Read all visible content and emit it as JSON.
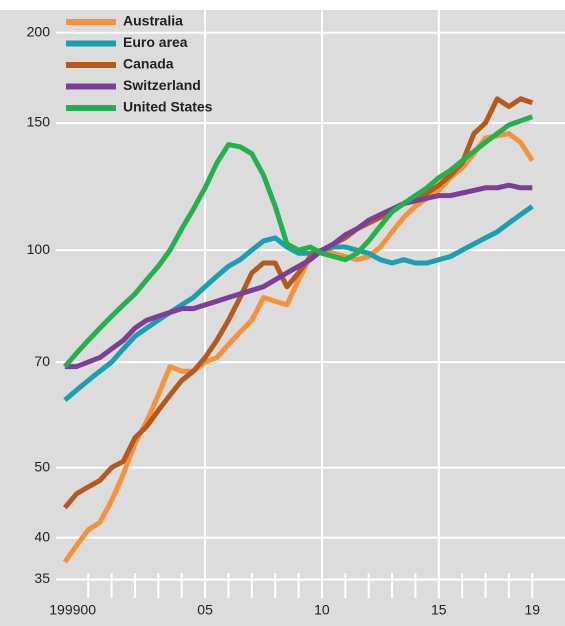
{
  "chart_data": {
    "type": "line",
    "x": [
      1999,
      1999.5,
      2000,
      2000.5,
      2001,
      2001.5,
      2002,
      2002.5,
      2003,
      2003.5,
      2004,
      2004.5,
      2005,
      2005.5,
      2006,
      2006.5,
      2007,
      2007.5,
      2008,
      2008.5,
      2009,
      2009.5,
      2010,
      2010.5,
      2011,
      2011.5,
      2012,
      2012.5,
      2013,
      2013.5,
      2014,
      2014.5,
      2015,
      2015.5,
      2016,
      2016.5,
      2017,
      2017.5,
      2018,
      2018.5,
      2019
    ],
    "series": [
      {
        "name": "Australia",
        "color": "#f7923a",
        "values": [
          37,
          39,
          41,
          42,
          45,
          49,
          54,
          58,
          63,
          69,
          68,
          68,
          70,
          71,
          74,
          77,
          80,
          86,
          85,
          84,
          91,
          98,
          100,
          99,
          98,
          97,
          98,
          101,
          106,
          111,
          115,
          118,
          121,
          126,
          130,
          136,
          143,
          144,
          145,
          141,
          133
        ]
      },
      {
        "name": "Euro area",
        "color": "#1a9fb2",
        "values": [
          62,
          64,
          66,
          68,
          70,
          73,
          76,
          78,
          80,
          82,
          84,
          86,
          89,
          92,
          95,
          97,
          100,
          103,
          104,
          101,
          99,
          99,
          100,
          101,
          101,
          100,
          99,
          97,
          96,
          97,
          96,
          96,
          97,
          98,
          100,
          102,
          104,
          106,
          109,
          112,
          115
        ]
      },
      {
        "name": "Canada",
        "color": "#b5591d",
        "values": [
          44,
          46,
          47,
          48,
          50,
          51,
          55,
          57,
          60,
          63,
          66,
          68,
          71,
          75,
          80,
          86,
          93,
          96,
          96,
          89,
          93,
          98,
          100,
          102,
          104,
          107,
          109,
          111,
          114,
          116,
          118,
          120,
          123,
          127,
          132,
          145,
          150,
          162,
          158,
          162,
          160
        ]
      },
      {
        "name": "Switzerland",
        "color": "#7b3f98",
        "values": [
          69,
          69,
          70,
          71,
          73,
          75,
          78,
          80,
          81,
          82,
          83,
          83,
          84,
          85,
          86,
          87,
          88,
          89,
          91,
          93,
          95,
          97,
          100,
          102,
          105,
          107,
          110,
          112,
          114,
          116,
          117,
          118,
          119,
          119,
          120,
          121,
          122,
          122,
          123,
          122,
          122
        ]
      },
      {
        "name": "United States",
        "color": "#22b14c",
        "values": [
          69,
          72,
          75,
          78,
          81,
          84,
          87,
          91,
          95,
          100,
          107,
          114,
          122,
          132,
          140,
          139,
          136,
          127,
          115,
          102,
          100,
          101,
          99,
          98,
          97,
          99,
          103,
          108,
          113,
          116,
          119,
          122,
          126,
          129,
          133,
          137,
          141,
          145,
          149,
          151,
          153
        ]
      }
    ],
    "xlim": [
      1998.45,
      2020.4
    ],
    "xticks": [
      {
        "value": 1999,
        "label": "1999"
      },
      {
        "value": 2000,
        "label": "00"
      },
      {
        "value": 2005,
        "label": "05"
      },
      {
        "value": 2010,
        "label": "10"
      },
      {
        "value": 2015,
        "label": "15"
      },
      {
        "value": 2019,
        "label": "19"
      }
    ],
    "xminorticks": [
      2000,
      2001,
      2002,
      2003,
      2004,
      2005,
      2006,
      2007,
      2008,
      2009,
      2010,
      2011,
      2012,
      2013,
      2014,
      2015,
      2016,
      2017,
      2018,
      2019
    ],
    "xgrid": [
      2005,
      2010,
      2015
    ],
    "ylim": [
      33,
      215
    ],
    "yticks": [
      35,
      40,
      50,
      70,
      100,
      150,
      200
    ],
    "log_y": true,
    "grid": true,
    "legend": "top-left"
  }
}
